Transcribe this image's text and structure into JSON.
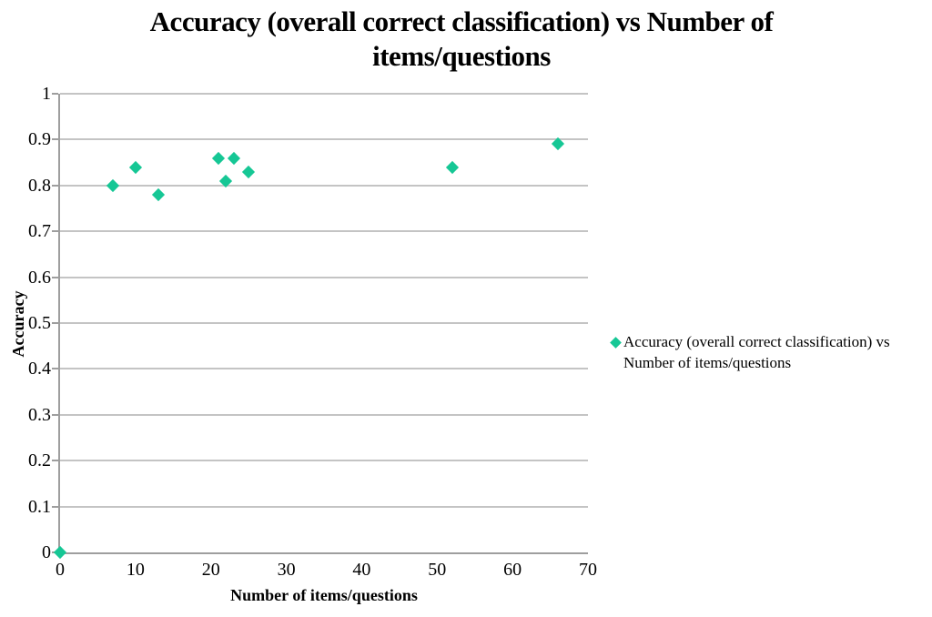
{
  "title": {
    "full": "Accuracy (overall correct classification) vs Number of items/questions",
    "line1": "Accuracy (overall correct classification) vs Number of",
    "line2": "items/questions"
  },
  "legend": {
    "line1": "Accuracy (overall correct classification) vs",
    "line2": "Number of items/questions",
    "marker": "diamond-icon"
  },
  "axes": {
    "x": {
      "label": "Number of items/questions",
      "ticks": [
        "0",
        "10",
        "20",
        "30",
        "40",
        "50",
        "60",
        "70"
      ]
    },
    "y": {
      "label": "Accuracy",
      "ticks": [
        "0",
        "0.1",
        "0.2",
        "0.3",
        "0.4",
        "0.5",
        "0.6",
        "0.7",
        "0.8",
        "0.9",
        "1"
      ]
    }
  },
  "chart_data": {
    "type": "scatter",
    "title": "Accuracy (overall correct classification) vs Number of items/questions",
    "xlabel": "Number of items/questions",
    "ylabel": "Accuracy",
    "xlim": [
      0,
      70
    ],
    "ylim": [
      0,
      1
    ],
    "x_tick_values": [
      0,
      10,
      20,
      30,
      40,
      50,
      60,
      70
    ],
    "y_tick_values": [
      0,
      0.1,
      0.2,
      0.3,
      0.4,
      0.5,
      0.6,
      0.7,
      0.8,
      0.9,
      1
    ],
    "grid": "horizontal-only",
    "legend_position": "right",
    "series": [
      {
        "name": "Accuracy (overall correct classification) vs Number of items/questions",
        "marker": "diamond",
        "color": "#16C795",
        "points": [
          [
            0,
            0
          ],
          [
            7,
            0.8
          ],
          [
            10,
            0.84
          ],
          [
            13,
            0.78
          ],
          [
            21,
            0.86
          ],
          [
            22,
            0.81
          ],
          [
            23,
            0.86
          ],
          [
            25,
            0.83
          ],
          [
            52,
            0.84
          ],
          [
            66,
            0.89
          ]
        ]
      }
    ]
  },
  "colors": {
    "marker": "#16C795",
    "gridline": "#C4C4C4",
    "axis": "#9E9E9E",
    "text": "#000000",
    "background": "#FFFFFF"
  }
}
